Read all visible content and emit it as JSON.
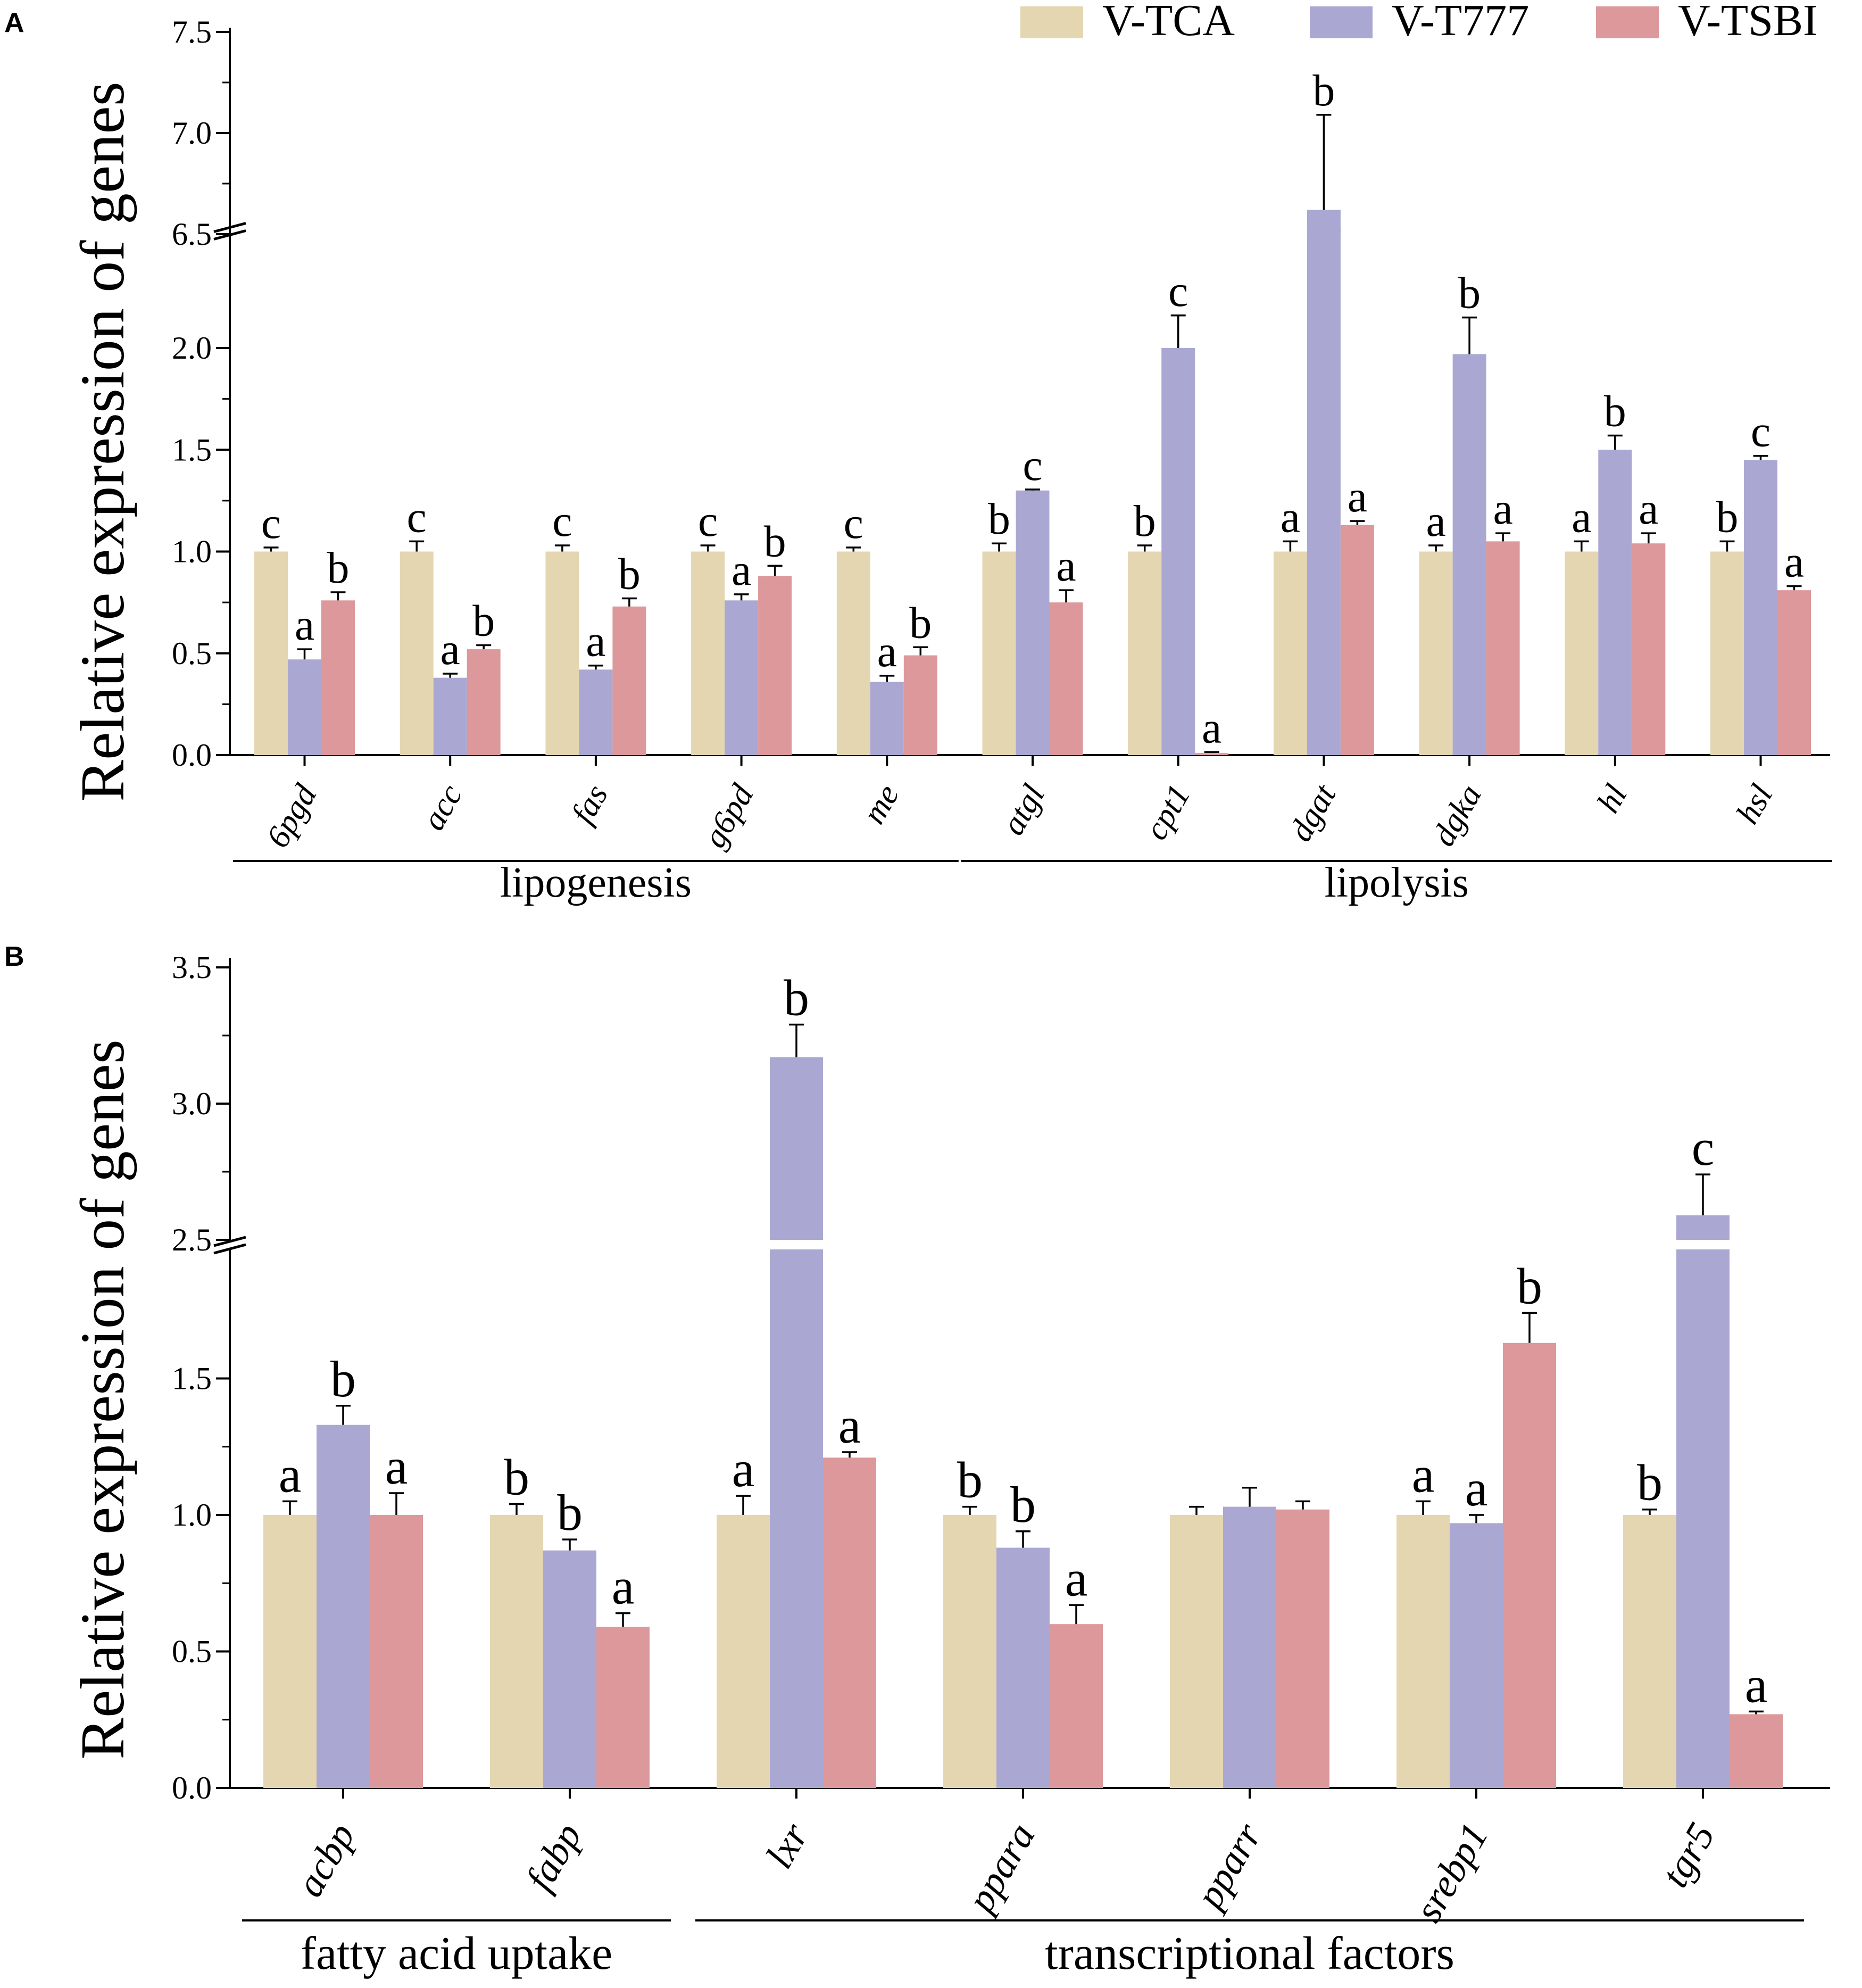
{
  "legend": [
    {
      "label": "V-TCA",
      "color": "#e3d6b1"
    },
    {
      "label": "V-T777",
      "color": "#aaa8d3"
    },
    {
      "label": "V-TSBI",
      "color": "#dd989b"
    }
  ],
  "chart_data": [
    {
      "panel": "A",
      "type": "bar",
      "ylabel": "Relative expression of genes",
      "axis_break": {
        "lower_range": [
          0,
          2.35
        ],
        "upper_range": [
          6.5,
          7.5
        ]
      },
      "lower_ticks": [
        "0.0",
        "0.5",
        "1.0",
        "1.5",
        "2.0"
      ],
      "lower_tick_values": [
        0,
        0.5,
        1.0,
        1.5,
        2.0
      ],
      "upper_ticks": [
        "6.5",
        "7.0",
        "7.5"
      ],
      "upper_tick_values": [
        6.5,
        7.0,
        7.5
      ],
      "categories": [
        "6pgd",
        "acc",
        "fas",
        "g6pd",
        "me",
        "atgl",
        "cpt1",
        "dgat",
        "dgka",
        "hl",
        "hsl"
      ],
      "series": [
        {
          "name": "V-TCA",
          "values": [
            1.0,
            1.0,
            1.0,
            1.0,
            1.0,
            1.0,
            1.0,
            1.0,
            1.0,
            1.0,
            1.0
          ],
          "errors": [
            0.02,
            0.05,
            0.03,
            0.03,
            0.02,
            0.04,
            0.03,
            0.05,
            0.03,
            0.05,
            0.05
          ],
          "letters": [
            "c",
            "c",
            "c",
            "c",
            "c",
            "b",
            "b",
            "a",
            "a",
            "a",
            "b"
          ]
        },
        {
          "name": "V-T777",
          "values": [
            0.47,
            0.38,
            0.42,
            0.76,
            0.36,
            1.3,
            2.0,
            6.62,
            1.97,
            1.5,
            1.45
          ],
          "errors": [
            0.05,
            0.02,
            0.02,
            0.03,
            0.03,
            0.005,
            0.16,
            0.47,
            0.18,
            0.07,
            0.02
          ],
          "letters": [
            "a",
            "a",
            "a",
            "a",
            "a",
            "c",
            "c",
            "b",
            "b",
            "b",
            "c"
          ]
        },
        {
          "name": "V-TSBI",
          "values": [
            0.76,
            0.52,
            0.73,
            0.88,
            0.49,
            0.75,
            0.01,
            1.13,
            1.05,
            1.04,
            0.81
          ],
          "errors": [
            0.04,
            0.02,
            0.04,
            0.05,
            0.04,
            0.06,
            0.005,
            0.02,
            0.04,
            0.05,
            0.02
          ],
          "letters": [
            "b",
            "b",
            "b",
            "b",
            "b",
            "a",
            "a",
            "a",
            "a",
            "a",
            "a"
          ]
        }
      ],
      "groups": [
        {
          "label": "lipogenesis",
          "from": 0,
          "to": 4
        },
        {
          "label": "lipolysis",
          "from": 5,
          "to": 10
        }
      ]
    },
    {
      "panel": "B",
      "type": "bar",
      "ylabel": "Relative expression of genes",
      "axis_break": {
        "lower_range": [
          0,
          1.92
        ],
        "upper_range": [
          2.5,
          3.5
        ]
      },
      "lower_ticks": [
        "0.0",
        "0.5",
        "1.0",
        "1.5"
      ],
      "lower_tick_values": [
        0,
        0.5,
        1.0,
        1.5
      ],
      "upper_ticks": [
        "2.5",
        "3.0",
        "3.5"
      ],
      "upper_tick_values": [
        2.5,
        3.0,
        3.5
      ],
      "categories": [
        "acbp",
        "fabp",
        "lxr",
        "ppara",
        "pparr",
        "srebp1",
        "tgr5"
      ],
      "series": [
        {
          "name": "V-TCA",
          "values": [
            1.0,
            1.0,
            1.0,
            1.0,
            1.0,
            1.0,
            1.0
          ],
          "errors": [
            0.05,
            0.04,
            0.07,
            0.03,
            0.03,
            0.05,
            0.02
          ],
          "letters": [
            "a",
            "b",
            "a",
            "b",
            "",
            "a",
            "b"
          ]
        },
        {
          "name": "V-T777",
          "values": [
            1.33,
            0.87,
            3.17,
            0.88,
            1.03,
            0.97,
            2.59
          ],
          "errors": [
            0.07,
            0.04,
            0.12,
            0.06,
            0.07,
            0.03,
            0.15
          ],
          "letters": [
            "b",
            "b",
            "b",
            "b",
            "",
            "a",
            "c"
          ]
        },
        {
          "name": "V-TSBI",
          "values": [
            1.0,
            0.59,
            1.21,
            0.6,
            1.02,
            1.63,
            0.27
          ],
          "errors": [
            0.08,
            0.05,
            0.02,
            0.07,
            0.03,
            0.11,
            0.01
          ],
          "letters": [
            "a",
            "a",
            "a",
            "a",
            "",
            "b",
            "a"
          ]
        }
      ],
      "groups": [
        {
          "label": "fatty acid uptake",
          "from": 0,
          "to": 1
        },
        {
          "label": "transcriptional factors",
          "from": 2,
          "to": 6
        }
      ]
    }
  ]
}
